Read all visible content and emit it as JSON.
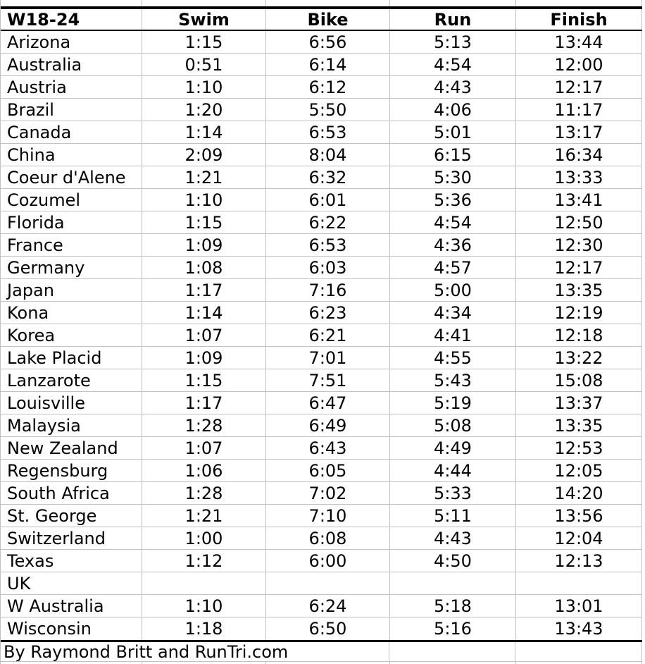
{
  "table": {
    "header": {
      "group": "W18-24",
      "columns": [
        "Swim",
        "Bike",
        "Run",
        "Finish"
      ]
    },
    "rows": [
      {
        "location": "Arizona",
        "swim": "1:15",
        "bike": "6:56",
        "run": "5:13",
        "finish": "13:44"
      },
      {
        "location": "Australia",
        "swim": "0:51",
        "bike": "6:14",
        "run": "4:54",
        "finish": "12:00"
      },
      {
        "location": "Austria",
        "swim": "1:10",
        "bike": "6:12",
        "run": "4:43",
        "finish": "12:17"
      },
      {
        "location": "Brazil",
        "swim": "1:20",
        "bike": "5:50",
        "run": "4:06",
        "finish": "11:17"
      },
      {
        "location": "Canada",
        "swim": "1:14",
        "bike": "6:53",
        "run": "5:01",
        "finish": "13:17"
      },
      {
        "location": "China",
        "swim": "2:09",
        "bike": "8:04",
        "run": "6:15",
        "finish": "16:34"
      },
      {
        "location": "Coeur d'Alene",
        "swim": "1:21",
        "bike": "6:32",
        "run": "5:30",
        "finish": "13:33"
      },
      {
        "location": "Cozumel",
        "swim": "1:10",
        "bike": "6:01",
        "run": "5:36",
        "finish": "13:41"
      },
      {
        "location": "Florida",
        "swim": "1:15",
        "bike": "6:22",
        "run": "4:54",
        "finish": "12:50"
      },
      {
        "location": "France",
        "swim": "1:09",
        "bike": "6:53",
        "run": "4:36",
        "finish": "12:30"
      },
      {
        "location": "Germany",
        "swim": "1:08",
        "bike": "6:03",
        "run": "4:57",
        "finish": "12:17"
      },
      {
        "location": "Japan",
        "swim": "1:17",
        "bike": "7:16",
        "run": "5:00",
        "finish": "13:35"
      },
      {
        "location": "Kona",
        "swim": "1:14",
        "bike": "6:23",
        "run": "4:34",
        "finish": "12:19"
      },
      {
        "location": "Korea",
        "swim": "1:07",
        "bike": "6:21",
        "run": "4:41",
        "finish": "12:18"
      },
      {
        "location": "Lake Placid",
        "swim": "1:09",
        "bike": "7:01",
        "run": "4:55",
        "finish": "13:22"
      },
      {
        "location": "Lanzarote",
        "swim": "1:15",
        "bike": "7:51",
        "run": "5:43",
        "finish": "15:08"
      },
      {
        "location": "Louisville",
        "swim": "1:17",
        "bike": "6:47",
        "run": "5:19",
        "finish": "13:37"
      },
      {
        "location": "Malaysia",
        "swim": "1:28",
        "bike": "6:49",
        "run": "5:08",
        "finish": "13:35"
      },
      {
        "location": "New Zealand",
        "swim": "1:07",
        "bike": "6:43",
        "run": "4:49",
        "finish": "12:53"
      },
      {
        "location": "Regensburg",
        "swim": "1:06",
        "bike": "6:05",
        "run": "4:44",
        "finish": "12:05"
      },
      {
        "location": "South Africa",
        "swim": "1:28",
        "bike": "7:02",
        "run": "5:33",
        "finish": "14:20"
      },
      {
        "location": "St. George",
        "swim": "1:21",
        "bike": "7:10",
        "run": "5:11",
        "finish": "13:56"
      },
      {
        "location": "Switzerland",
        "swim": "1:00",
        "bike": "6:08",
        "run": "4:43",
        "finish": "12:04"
      },
      {
        "location": "Texas",
        "swim": "1:12",
        "bike": "6:00",
        "run": "4:50",
        "finish": "12:13"
      },
      {
        "location": "UK",
        "swim": "",
        "bike": "",
        "run": "",
        "finish": ""
      },
      {
        "location": "W Australia",
        "swim": "1:10",
        "bike": "6:24",
        "run": "5:18",
        "finish": "13:01"
      },
      {
        "location": "Wisconsin",
        "swim": "1:18",
        "bike": "6:50",
        "run": "5:16",
        "finish": "13:43"
      }
    ],
    "footer": "By Raymond Britt and RunTri.com"
  },
  "colors": {
    "gridline": "#c0c0c0",
    "rule": "#000000",
    "text": "#000000",
    "background": "#ffffff"
  }
}
